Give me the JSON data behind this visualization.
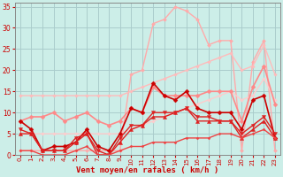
{
  "bg_color": "#cceee8",
  "grid_color": "#aacccc",
  "xlabel": "Vent moyen/en rafales ( km/h )",
  "xlim": [
    -0.5,
    23.5
  ],
  "ylim": [
    0,
    36
  ],
  "yticks": [
    0,
    5,
    10,
    15,
    20,
    25,
    30,
    35
  ],
  "xticks": [
    0,
    1,
    2,
    3,
    4,
    5,
    6,
    7,
    8,
    9,
    10,
    11,
    12,
    13,
    14,
    15,
    16,
    17,
    18,
    19,
    20,
    21,
    22,
    23
  ],
  "lines": [
    {
      "x": [
        0,
        1,
        2,
        3,
        4,
        5,
        6,
        7,
        8,
        9,
        10,
        11,
        12,
        13,
        14,
        15,
        16,
        17,
        18,
        19,
        20,
        21,
        22,
        23
      ],
      "y": [
        1,
        1,
        1,
        1,
        1,
        1,
        1,
        1,
        1,
        1,
        19,
        20,
        31,
        32,
        35,
        34,
        32,
        26,
        27,
        27,
        1,
        22,
        27,
        1
      ],
      "color": "#ffaaaa",
      "lw": 1.0,
      "marker": "D",
      "ms": 2.0
    },
    {
      "x": [
        0,
        1,
        2,
        3,
        4,
        5,
        6,
        7,
        8,
        9,
        10,
        11,
        12,
        13,
        14,
        15,
        16,
        17,
        18,
        19,
        20,
        21,
        22,
        23
      ],
      "y": [
        14,
        14,
        14,
        14,
        14,
        14,
        14,
        14,
        14,
        14,
        15,
        16,
        17,
        18,
        19,
        20,
        21,
        22,
        23,
        24,
        20,
        21,
        26,
        19
      ],
      "color": "#ffbbbb",
      "lw": 1.0,
      "marker": "D",
      "ms": 1.8
    },
    {
      "x": [
        0,
        1,
        2,
        3,
        4,
        5,
        6,
        7,
        8,
        9,
        10,
        11,
        12,
        13,
        14,
        15,
        16,
        17,
        18,
        19,
        20,
        21,
        22,
        23
      ],
      "y": [
        5,
        5,
        5,
        5,
        5,
        5,
        5,
        5,
        5,
        5,
        6,
        7,
        8,
        9,
        10,
        11,
        12,
        13,
        14,
        15,
        13,
        14,
        18,
        13
      ],
      "color": "#ffcccc",
      "lw": 1.0,
      "marker": "D",
      "ms": 1.8
    },
    {
      "x": [
        0,
        1,
        2,
        3,
        4,
        5,
        6,
        7,
        8,
        9,
        10,
        11,
        12,
        13,
        14,
        15,
        16,
        17,
        18,
        19,
        20,
        21,
        22,
        23
      ],
      "y": [
        8,
        9,
        9,
        10,
        8,
        9,
        10,
        8,
        7,
        8,
        11,
        10,
        16,
        14,
        14,
        14,
        14,
        15,
        15,
        15,
        8,
        16,
        21,
        12
      ],
      "color": "#ff8888",
      "lw": 1.2,
      "marker": "D",
      "ms": 2.5
    },
    {
      "x": [
        0,
        1,
        2,
        3,
        4,
        5,
        6,
        7,
        8,
        9,
        10,
        11,
        12,
        13,
        14,
        15,
        16,
        17,
        18,
        19,
        20,
        21,
        22,
        23
      ],
      "y": [
        8,
        6,
        1,
        2,
        2,
        3,
        6,
        2,
        1,
        5,
        11,
        10,
        17,
        14,
        13,
        15,
        11,
        10,
        10,
        10,
        6,
        13,
        14,
        4
      ],
      "color": "#cc0000",
      "lw": 1.2,
      "marker": "D",
      "ms": 2.5
    },
    {
      "x": [
        0,
        1,
        2,
        3,
        4,
        5,
        6,
        7,
        8,
        9,
        10,
        11,
        12,
        13,
        14,
        15,
        16,
        17,
        18,
        19,
        20,
        21,
        22,
        23
      ],
      "y": [
        6,
        5,
        1,
        1,
        1,
        4,
        5,
        1,
        0,
        4,
        7,
        7,
        10,
        10,
        10,
        11,
        9,
        9,
        8,
        8,
        5,
        7,
        9,
        5
      ],
      "color": "#dd2222",
      "lw": 1.0,
      "marker": "v",
      "ms": 3.0
    },
    {
      "x": [
        0,
        1,
        2,
        3,
        4,
        5,
        6,
        7,
        8,
        9,
        10,
        11,
        12,
        13,
        14,
        15,
        16,
        17,
        18,
        19,
        20,
        21,
        22,
        23
      ],
      "y": [
        5,
        5,
        1,
        1,
        1,
        3,
        5,
        0,
        0,
        3,
        6,
        7,
        9,
        9,
        10,
        11,
        8,
        8,
        8,
        8,
        4,
        6,
        8,
        4
      ],
      "color": "#dd2222",
      "lw": 1.0,
      "marker": "^",
      "ms": 3.0
    },
    {
      "x": [
        0,
        1,
        2,
        3,
        4,
        5,
        6,
        7,
        8,
        9,
        10,
        11,
        12,
        13,
        14,
        15,
        16,
        17,
        18,
        19,
        20,
        21,
        22,
        23
      ],
      "y": [
        1,
        1,
        0,
        0,
        0,
        1,
        2,
        0,
        0,
        1,
        2,
        2,
        3,
        3,
        3,
        4,
        4,
        4,
        5,
        5,
        4,
        5,
        6,
        4
      ],
      "color": "#ee4444",
      "lw": 1.0,
      "marker": "D",
      "ms": 1.5
    }
  ],
  "tick_color": "#cc0000",
  "label_color": "#cc0000",
  "axis_color": "#888888"
}
